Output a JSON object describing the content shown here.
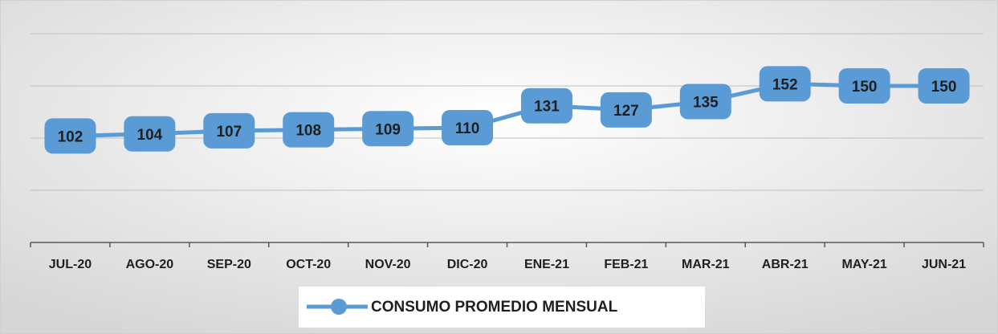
{
  "chart_data": {
    "type": "line",
    "categories": [
      "JUL-20",
      "AGO-20",
      "SEP-20",
      "OCT-20",
      "NOV-20",
      "DIC-20",
      "ENE-21",
      "FEB-21",
      "MAR-21",
      "ABR-21",
      "MAY-21",
      "JUN-21"
    ],
    "series": [
      {
        "name": "CONSUMO PROMEDIO MENSUAL",
        "color": "#5b9bd5",
        "values": [
          102,
          104,
          107,
          108,
          109,
          110,
          131,
          127,
          135,
          152,
          150,
          150
        ]
      }
    ],
    "ylim": [
      0,
      200
    ],
    "yticks": [
      0,
      50,
      100,
      150,
      200
    ],
    "grid": true,
    "legend": "bottom"
  }
}
